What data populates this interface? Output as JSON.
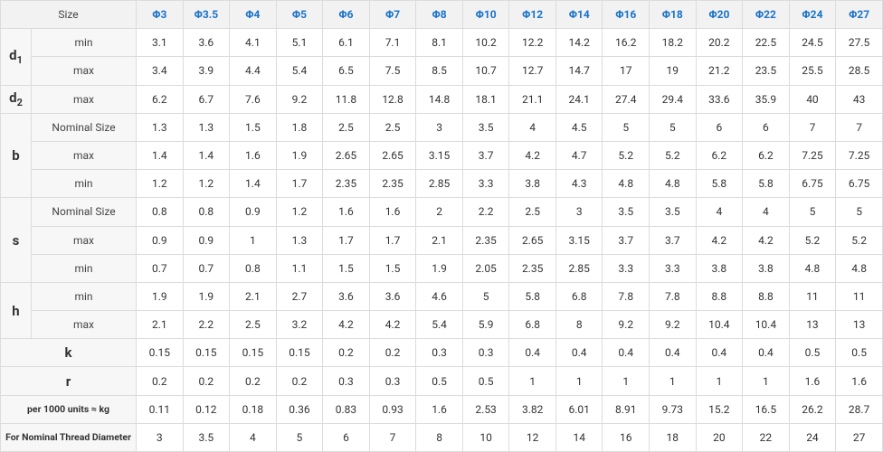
{
  "header": {
    "size": "Size",
    "columns": [
      "Φ3",
      "Φ3.5",
      "Φ4",
      "Φ5",
      "Φ6",
      "Φ7",
      "Φ8",
      "Φ10",
      "Φ12",
      "Φ14",
      "Φ16",
      "Φ18",
      "Φ20",
      "Φ22",
      "Φ24",
      "Φ27"
    ]
  },
  "groups": [
    {
      "label": "d",
      "label_sub": "1",
      "rows": [
        {
          "name": "min",
          "values": [
            3.1,
            3.6,
            4.1,
            5.1,
            6.1,
            7.1,
            8.1,
            10.2,
            12.2,
            14.2,
            16.2,
            18.2,
            20.2,
            22.5,
            24.5,
            27.5
          ]
        },
        {
          "name": "max",
          "values": [
            3.4,
            3.9,
            4.4,
            5.4,
            6.5,
            7.5,
            8.5,
            10.7,
            12.7,
            14.7,
            17,
            19,
            21.2,
            23.5,
            25.5,
            28.5
          ]
        }
      ]
    },
    {
      "label": "d",
      "label_sub": "2",
      "rows": [
        {
          "name": "max",
          "values": [
            6.2,
            6.7,
            7.6,
            9.2,
            11.8,
            12.8,
            14.8,
            18.1,
            21.1,
            24.1,
            27.4,
            29.4,
            33.6,
            35.9,
            40,
            43
          ]
        }
      ]
    },
    {
      "label": "b",
      "rows": [
        {
          "name": "Nominal Size",
          "values": [
            1.3,
            1.3,
            1.5,
            1.8,
            2.5,
            2.5,
            3,
            3.5,
            4,
            4.5,
            5,
            5,
            6,
            6,
            7,
            7
          ]
        },
        {
          "name": "max",
          "values": [
            1.4,
            1.4,
            1.6,
            1.9,
            2.65,
            2.65,
            3.15,
            3.7,
            4.2,
            4.7,
            5.2,
            5.2,
            6.2,
            6.2,
            7.25,
            7.25
          ]
        },
        {
          "name": "min",
          "values": [
            1.2,
            1.2,
            1.4,
            1.7,
            2.35,
            2.35,
            2.85,
            3.3,
            3.8,
            4.3,
            4.8,
            4.8,
            5.8,
            5.8,
            6.75,
            6.75
          ]
        }
      ]
    },
    {
      "label": "s",
      "rows": [
        {
          "name": "Nominal Size",
          "values": [
            0.8,
            0.8,
            0.9,
            1.2,
            1.6,
            1.6,
            2,
            2.2,
            2.5,
            3,
            3.5,
            3.5,
            4,
            4,
            5,
            5
          ]
        },
        {
          "name": "max",
          "values": [
            0.9,
            0.9,
            1,
            1.3,
            1.7,
            1.7,
            2.1,
            2.35,
            2.65,
            3.15,
            3.7,
            3.7,
            4.2,
            4.2,
            5.2,
            5.2
          ]
        },
        {
          "name": "min",
          "values": [
            0.7,
            0.7,
            0.8,
            1.1,
            1.5,
            1.5,
            1.9,
            2.05,
            2.35,
            2.85,
            3.3,
            3.3,
            3.8,
            3.8,
            4.8,
            4.8
          ]
        }
      ]
    },
    {
      "label": "h",
      "rows": [
        {
          "name": "min",
          "values": [
            1.9,
            1.9,
            2.1,
            2.7,
            3.6,
            3.6,
            4.6,
            5,
            5.8,
            6.8,
            7.8,
            7.8,
            8.8,
            8.8,
            11,
            11
          ]
        },
        {
          "name": "max",
          "values": [
            2.1,
            2.2,
            2.5,
            3.2,
            4.2,
            4.2,
            5.4,
            5.9,
            6.8,
            8,
            9.2,
            9.2,
            10.4,
            10.4,
            13,
            13
          ]
        }
      ]
    },
    {
      "label": "k",
      "rows": [
        {
          "values": [
            0.15,
            0.15,
            0.15,
            0.15,
            0.2,
            0.2,
            0.3,
            0.3,
            0.4,
            0.4,
            0.4,
            0.4,
            0.4,
            0.4,
            0.5,
            0.5
          ]
        }
      ]
    },
    {
      "label": "r",
      "rows": [
        {
          "values": [
            0.2,
            0.2,
            0.2,
            0.2,
            0.3,
            0.3,
            0.5,
            0.5,
            1,
            1,
            1,
            1,
            1,
            1,
            1.6,
            1.6
          ]
        }
      ]
    },
    {
      "label": "per 1000 units ≈ kg",
      "rows": [
        {
          "values": [
            0.11,
            0.12,
            0.18,
            0.36,
            0.83,
            0.93,
            1.6,
            2.53,
            3.82,
            6.01,
            8.91,
            9.73,
            15.2,
            16.5,
            26.2,
            28.7
          ]
        }
      ]
    },
    {
      "label": "For Nominal Thread Diameter",
      "rows": [
        {
          "values": [
            3,
            3.5,
            4,
            5,
            6,
            7,
            8,
            10,
            12,
            14,
            16,
            18,
            20,
            22,
            24,
            27
          ]
        }
      ]
    }
  ]
}
